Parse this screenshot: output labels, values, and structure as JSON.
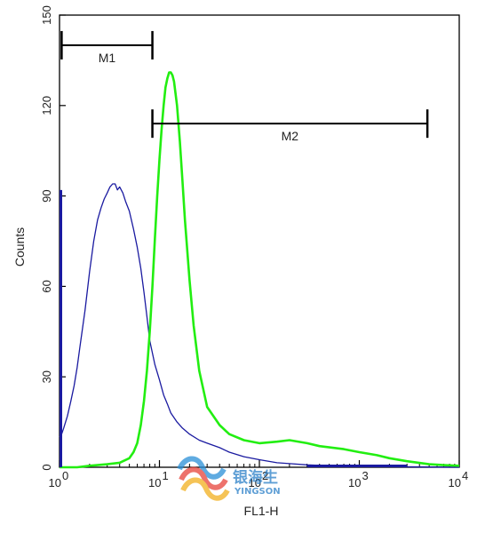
{
  "chart_data": {
    "type": "line",
    "title": "",
    "xlabel": "FL1-H",
    "ylabel": "Counts",
    "x_scale": "log",
    "xlim": [
      1,
      10000
    ],
    "ylim": [
      0,
      150
    ],
    "x_ticks": [
      {
        "value": 1,
        "base": "10",
        "exp": "0"
      },
      {
        "value": 10,
        "base": "10",
        "exp": "1"
      },
      {
        "value": 100,
        "base": "10",
        "exp": "2"
      },
      {
        "value": 1000,
        "base": "10",
        "exp": "3"
      },
      {
        "value": 10000,
        "base": "10",
        "exp": "4"
      }
    ],
    "y_ticks": [
      {
        "value": 0,
        "label": "0"
      },
      {
        "value": 30,
        "label": "30"
      },
      {
        "value": 60,
        "label": "60"
      },
      {
        "value": 90,
        "label": "90"
      },
      {
        "value": 120,
        "label": "120"
      },
      {
        "value": 150,
        "label": "150"
      }
    ],
    "markers": [
      {
        "label": "M1",
        "x_start": 1.05,
        "x_end": 8.5,
        "y": 140
      },
      {
        "label": "M2",
        "x_start": 8.5,
        "x_end": 4800,
        "y": 114
      }
    ],
    "series": [
      {
        "color": "#1a1aa0",
        "x": [
          1,
          1.05,
          1.1,
          1.2,
          1.3,
          1.4,
          1.5,
          1.6,
          1.8,
          2.0,
          2.2,
          2.4,
          2.6,
          2.8,
          3.0,
          3.2,
          3.4,
          3.6,
          3.8,
          4.0,
          4.3,
          4.6,
          5.0,
          5.5,
          6.0,
          6.5,
          7.0,
          7.5,
          8.0,
          9.0,
          10,
          11,
          12,
          13,
          15,
          17,
          20,
          25,
          30,
          40,
          50,
          70,
          100,
          150,
          200,
          300,
          500,
          1000,
          2000,
          5000,
          10000
        ],
        "y": [
          10,
          11,
          13,
          17,
          22,
          27,
          33,
          40,
          52,
          65,
          75,
          82,
          86,
          89,
          91,
          93,
          94,
          94,
          92,
          93,
          91,
          88,
          85,
          79,
          73,
          66,
          58,
          50,
          42,
          34,
          29,
          24,
          21,
          18,
          15,
          13,
          11,
          9,
          8,
          6.5,
          5,
          3.5,
          2.5,
          1.5,
          1.2,
          0.8,
          0.5,
          0.3,
          0.2,
          0.1,
          0
        ]
      },
      {
        "color": "#22ee11",
        "x": [
          1,
          1.5,
          2,
          3,
          4,
          5,
          5.5,
          6,
          6.5,
          7,
          7.5,
          8,
          8.5,
          9,
          9.5,
          10,
          10.5,
          11,
          11.5,
          12,
          12.5,
          13,
          13.5,
          14,
          15,
          16,
          17,
          18,
          20,
          22,
          25,
          30,
          40,
          50,
          70,
          100,
          150,
          200,
          300,
          400,
          700,
          1000,
          1500,
          2000,
          3000,
          5000,
          7000,
          10000
        ],
        "y": [
          0,
          0,
          0.5,
          1,
          1.5,
          3,
          5,
          8,
          14,
          22,
          32,
          45,
          60,
          76,
          90,
          102,
          112,
          120,
          126,
          129,
          131,
          131,
          130,
          128,
          120,
          108,
          95,
          82,
          62,
          47,
          32,
          20,
          14,
          11,
          9,
          8,
          8.5,
          9,
          8,
          7,
          6,
          5,
          4,
          3,
          2,
          1,
          0.7,
          0.5
        ]
      }
    ]
  },
  "watermark": {
    "name_cn": "银海生",
    "name_en": "YINGSON"
  }
}
